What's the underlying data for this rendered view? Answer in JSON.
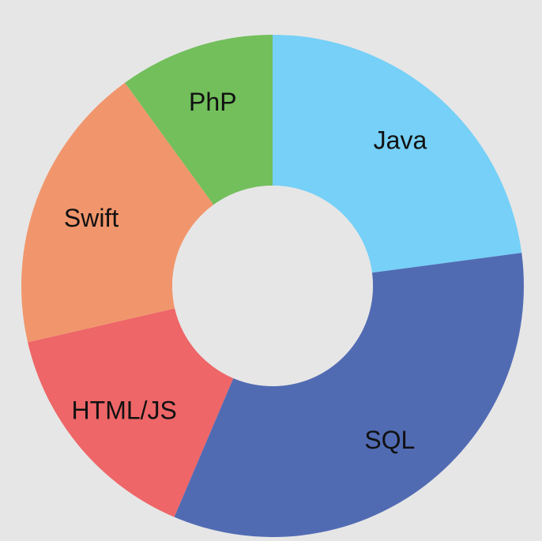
{
  "background": "#e6e6e6",
  "chart_data": {
    "type": "pie",
    "style": "donut",
    "start_angle_deg": 0,
    "direction": "clockwise",
    "labels_shown_on_slices": true,
    "legend": "none",
    "slices": [
      {
        "label": "Java",
        "value": 22.9,
        "color": "#76d0f7"
      },
      {
        "label": "SQL",
        "value": 33.5,
        "color": "#516bb3"
      },
      {
        "label": "HTML/JS",
        "value": 15.0,
        "color": "#ee6668"
      },
      {
        "label": "Swift",
        "value": 18.6,
        "color": "#f1966c"
      },
      {
        "label": "PhP",
        "value": 10.0,
        "color": "#72bf5c"
      }
    ]
  }
}
